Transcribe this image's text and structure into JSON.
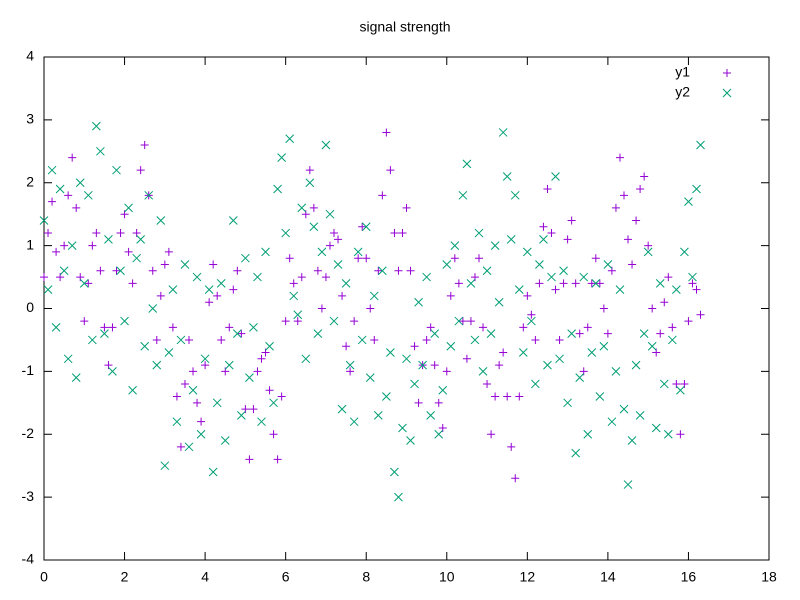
{
  "chart_data": {
    "type": "scatter",
    "title": "signal strength",
    "x": [
      0,
      0.1,
      0.2,
      0.3,
      0.4,
      0.5,
      0.6,
      0.7,
      0.8,
      0.9,
      1,
      1.1,
      1.2,
      1.3,
      1.4,
      1.5,
      1.6,
      1.7,
      1.8,
      1.9,
      2,
      2.1,
      2.2,
      2.3,
      2.4,
      2.5,
      2.6,
      2.7,
      2.8,
      2.9,
      3,
      3.1,
      3.2,
      3.3,
      3.4,
      3.5,
      3.6,
      3.7,
      3.8,
      3.9,
      4,
      4.1,
      4.2,
      4.3,
      4.4,
      4.5,
      4.6,
      4.7,
      4.8,
      4.9,
      5,
      5.1,
      5.2,
      5.3,
      5.4,
      5.5,
      5.6,
      5.7,
      5.8,
      5.9,
      6,
      6.1,
      6.2,
      6.3,
      6.4,
      6.5,
      6.6,
      6.7,
      6.8,
      6.9,
      7,
      7.1,
      7.2,
      7.3,
      7.4,
      7.5,
      7.6,
      7.7,
      7.8,
      7.9,
      8,
      8.1,
      8.2,
      8.3,
      8.4,
      8.5,
      8.6,
      8.7,
      8.8,
      8.9,
      9,
      9.1,
      9.2,
      9.3,
      9.4,
      9.5,
      9.6,
      9.7,
      9.8,
      9.9,
      10,
      10.1,
      10.2,
      10.3,
      10.4,
      10.5,
      10.6,
      10.7,
      10.8,
      10.9,
      11,
      11.1,
      11.2,
      11.3,
      11.4,
      11.5,
      11.6,
      11.7,
      11.8,
      11.9,
      12,
      12.1,
      12.2,
      12.3,
      12.4,
      12.5,
      12.6,
      12.7,
      12.8,
      12.9,
      13,
      13.1,
      13.2,
      13.3,
      13.4,
      13.5,
      13.6,
      13.7,
      13.8,
      13.9,
      14,
      14.1,
      14.2,
      14.3,
      14.4,
      14.5,
      14.6,
      14.7,
      14.8,
      14.9,
      15,
      15.1,
      15.2,
      15.3,
      15.4,
      15.5,
      15.6,
      15.7,
      15.8,
      15.9,
      16,
      16.1,
      16.2,
      16.3
    ],
    "series": [
      {
        "name": "y1",
        "marker": "plus",
        "color": "#9400d3",
        "values": [
          0.5,
          1.2,
          1.7,
          0.9,
          0.5,
          1.0,
          1.8,
          2.4,
          1.6,
          0.5,
          -0.2,
          0.4,
          1.0,
          1.2,
          0.6,
          -0.3,
          -0.9,
          -0.3,
          0.6,
          1.2,
          1.5,
          0.9,
          0.4,
          1.2,
          2.2,
          2.6,
          1.8,
          0.6,
          -0.5,
          0.2,
          0.7,
          0.9,
          -0.3,
          -1.4,
          -2.2,
          -1.2,
          -0.5,
          -1.0,
          -1.5,
          -1.8,
          -0.9,
          0.1,
          0.7,
          0.2,
          -0.5,
          -1.0,
          -0.3,
          0.3,
          0.6,
          -0.4,
          -1.6,
          -2.4,
          -1.6,
          -1.0,
          -0.8,
          -0.7,
          -1.3,
          -2.0,
          -2.4,
          -1.4,
          -0.2,
          0.8,
          0.4,
          -0.2,
          0.5,
          1.5,
          2.2,
          1.6,
          0.6,
          0.0,
          0.5,
          1.0,
          1.2,
          1.1,
          0.2,
          -0.6,
          -1.0,
          -0.2,
          0.8,
          1.3,
          0.8,
          0.0,
          -0.5,
          0.6,
          1.8,
          2.8,
          2.2,
          1.2,
          0.6,
          1.2,
          1.6,
          0.6,
          -0.6,
          -1.5,
          -0.9,
          -0.5,
          -0.3,
          -0.9,
          -1.5,
          -1.9,
          -1.0,
          0.2,
          0.8,
          0.4,
          -0.2,
          -0.8,
          -0.2,
          0.5,
          0.8,
          -0.3,
          -1.2,
          -2.0,
          -1.4,
          -0.9,
          -0.7,
          -1.4,
          -2.2,
          -2.7,
          -1.4,
          -0.3,
          0.2,
          -0.1,
          -0.5,
          0.4,
          1.3,
          1.9,
          1.2,
          0.3,
          -0.5,
          0.4,
          1.1,
          1.4,
          0.4,
          -0.4,
          -1.0,
          -0.3,
          0.4,
          0.8,
          0.4,
          0.0,
          -0.4,
          0.6,
          1.6,
          2.4,
          1.8,
          1.1,
          0.7,
          1.4,
          1.9,
          2.1,
          1.0,
          0.0,
          -0.7,
          -0.4,
          0.1,
          0.5,
          -0.3,
          -1.2,
          -2.0,
          -1.2,
          -0.2,
          0.4,
          0.3,
          -0.1
        ]
      },
      {
        "name": "y2",
        "marker": "cross",
        "color": "#009e73",
        "values": [
          1.4,
          0.3,
          2.2,
          -0.3,
          1.9,
          0.6,
          -0.8,
          1.0,
          -1.1,
          2.0,
          0.4,
          1.8,
          -0.5,
          2.9,
          2.5,
          -0.4,
          1.1,
          -1.0,
          2.2,
          0.6,
          -0.2,
          1.6,
          -1.3,
          0.8,
          1.1,
          -0.6,
          1.8,
          0.0,
          -0.9,
          1.4,
          -2.5,
          -0.7,
          0.3,
          -1.8,
          -0.5,
          0.7,
          -2.2,
          -1.3,
          0.5,
          -2.0,
          -0.8,
          0.3,
          -2.6,
          -1.5,
          0.4,
          -2.1,
          -0.9,
          1.4,
          -0.4,
          -1.7,
          0.8,
          -1.1,
          -0.3,
          0.5,
          -1.8,
          0.9,
          -0.6,
          -1.5,
          1.9,
          2.4,
          1.2,
          2.7,
          0.2,
          -0.1,
          1.6,
          -0.8,
          2.0,
          1.3,
          -0.4,
          0.9,
          2.6,
          1.5,
          -0.2,
          0.7,
          -1.6,
          0.4,
          -0.9,
          -1.8,
          0.9,
          -0.5,
          1.3,
          -1.1,
          0.2,
          -1.7,
          0.6,
          -1.4,
          -0.7,
          -2.6,
          -3.0,
          -1.9,
          -0.8,
          -2.1,
          -1.2,
          0.1,
          -0.9,
          0.5,
          -1.7,
          -0.4,
          -2.0,
          -1.3,
          0.7,
          -0.6,
          1.0,
          -0.2,
          1.8,
          2.3,
          0.4,
          -0.5,
          1.2,
          -1.0,
          0.6,
          -0.4,
          1.0,
          0.1,
          2.8,
          2.1,
          1.1,
          1.8,
          0.3,
          -0.7,
          0.9,
          -0.2,
          -1.2,
          0.7,
          1.1,
          -0.9,
          0.5,
          2.1,
          -0.8,
          0.6,
          -1.5,
          -0.4,
          -2.3,
          -1.1,
          0.5,
          -2.0,
          -0.7,
          0.4,
          -1.4,
          -0.6,
          0.7,
          -1.8,
          -1.0,
          0.3,
          -1.6,
          -2.8,
          -2.1,
          -0.9,
          -1.7,
          -0.4,
          0.9,
          -0.6,
          -1.9,
          0.4,
          -1.2,
          -2.0,
          -0.5,
          0.3,
          -1.3,
          0.9,
          1.7,
          0.5,
          1.9,
          2.6
        ]
      }
    ],
    "xlim": [
      0,
      18
    ],
    "xticks": [
      0,
      2,
      4,
      6,
      8,
      10,
      12,
      14,
      16,
      18
    ],
    "ylim": [
      -4,
      4
    ],
    "yticks": [
      -4,
      -3,
      -2,
      -1,
      0,
      1,
      2,
      3,
      4
    ],
    "grid": false,
    "legend": "top-right"
  }
}
